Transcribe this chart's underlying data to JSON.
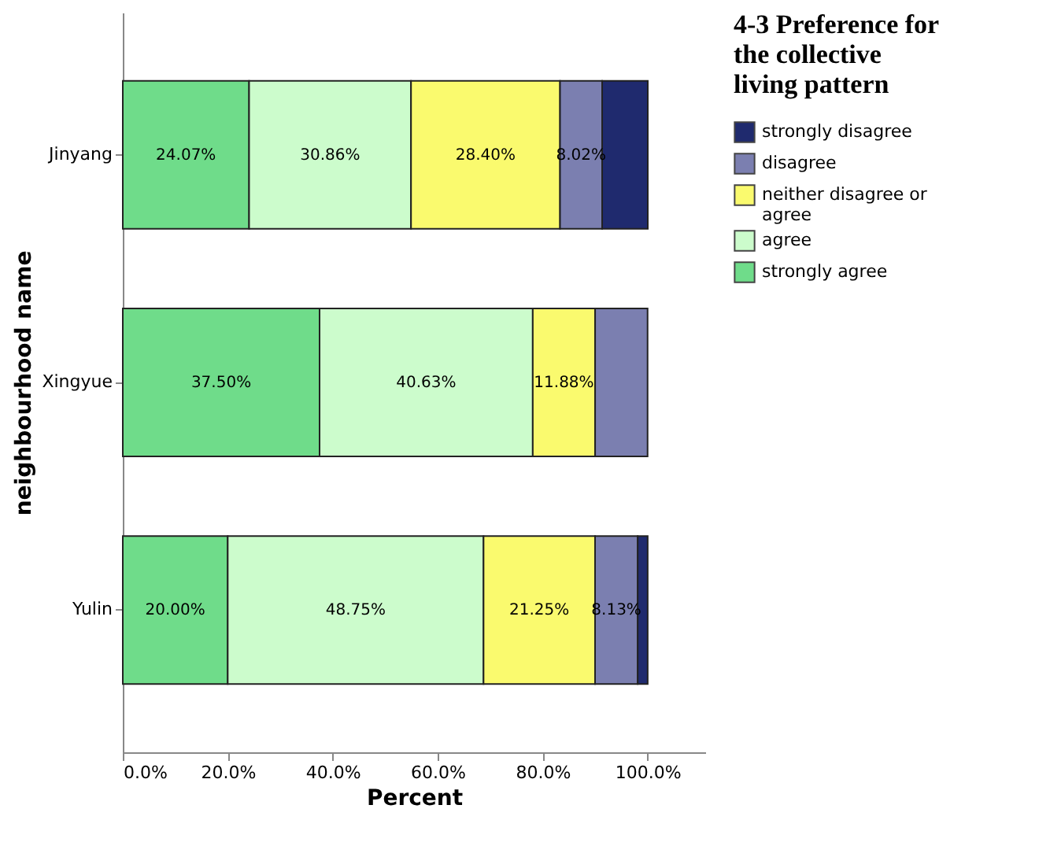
{
  "chart_data": {
    "type": "bar",
    "orientation": "horizontal",
    "stacked": true,
    "title": "4-3 Preference for the collective living pattern",
    "xlabel": "Percent",
    "ylabel": "neighbourhood name",
    "categories": [
      "Jinyang",
      "Xingyue",
      "Yulin"
    ],
    "series": [
      {
        "name": "strongly agree",
        "color": "#6fdc8a",
        "values": [
          24.07,
          37.5,
          20.0
        ],
        "value_labels": [
          "24.07%",
          "37.50%",
          "20.00%"
        ]
      },
      {
        "name": "agree",
        "color": "#ccfccc",
        "values": [
          30.86,
          40.63,
          48.75
        ],
        "value_labels": [
          "30.86%",
          "40.63%",
          "48.75%"
        ]
      },
      {
        "name": "neither disagree or agree",
        "color": "#fafa6e",
        "values": [
          28.4,
          11.88,
          21.25
        ],
        "value_labels": [
          "28.40%",
          "11.88%",
          "21.25%"
        ]
      },
      {
        "name": "disagree",
        "color": "#7b7fb0",
        "values": [
          8.02,
          10.0,
          8.13
        ],
        "value_labels": [
          "8.02%",
          null,
          "8.13%"
        ]
      },
      {
        "name": "strongly disagree",
        "color": "#1f2a6e",
        "values": [
          8.7,
          null,
          1.9
        ],
        "value_labels": [
          null,
          null,
          null
        ]
      }
    ],
    "xlim": [
      0,
      111
    ],
    "xticks": [
      {
        "value": 0,
        "label": "0.0%"
      },
      {
        "value": 20,
        "label": "20.0%"
      },
      {
        "value": 40,
        "label": "40.0%"
      },
      {
        "value": 60,
        "label": "60.0%"
      },
      {
        "value": 80,
        "label": "80.0%"
      },
      {
        "value": 100,
        "label": "100.0%"
      }
    ],
    "legend": "right",
    "grid": false
  }
}
